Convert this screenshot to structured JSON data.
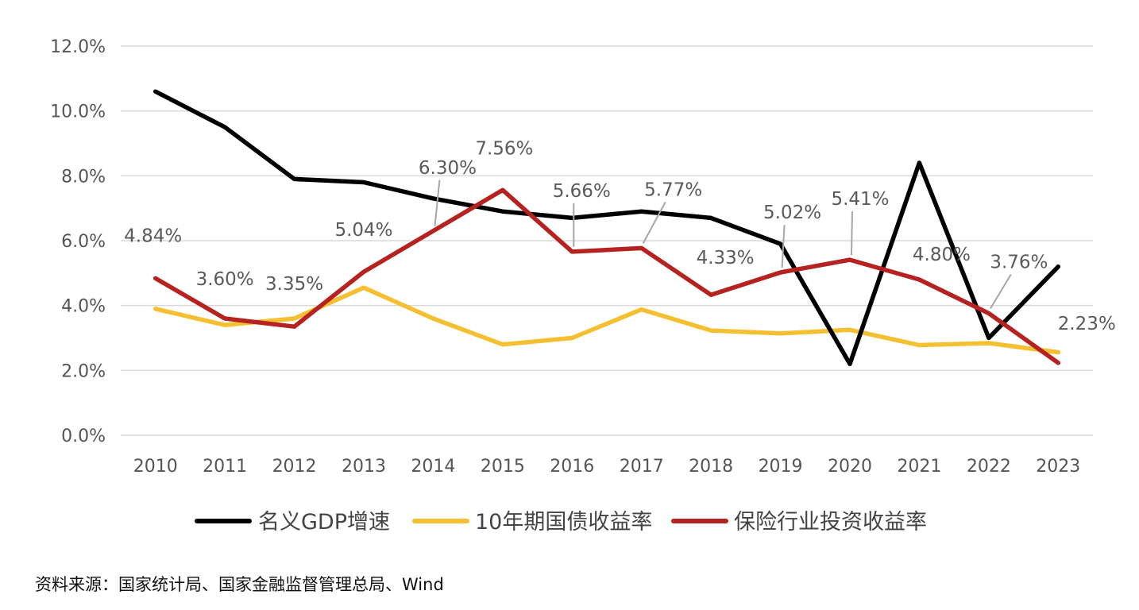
{
  "chart_data": {
    "type": "line",
    "categories": [
      "2010",
      "2011",
      "2012",
      "2013",
      "2014",
      "2015",
      "2016",
      "2017",
      "2018",
      "2019",
      "2020",
      "2021",
      "2022",
      "2023"
    ],
    "ylim": [
      0,
      12
    ],
    "y_ticks": [
      "0.0%",
      "2.0%",
      "4.0%",
      "6.0%",
      "8.0%",
      "10.0%",
      "12.0%"
    ],
    "grid": "horizontal",
    "legend_position": "bottom",
    "series": [
      {
        "name": "名义GDP增速",
        "color": "#000000",
        "values": [
          10.6,
          9.5,
          7.9,
          7.8,
          7.3,
          6.9,
          6.7,
          6.9,
          6.7,
          5.9,
          2.2,
          8.4,
          3.0,
          5.2
        ]
      },
      {
        "name": "10年期国债收益率",
        "color": "#F4C032",
        "values": [
          3.9,
          3.4,
          3.6,
          4.55,
          3.6,
          2.8,
          3.0,
          3.88,
          3.23,
          3.14,
          3.25,
          2.78,
          2.84,
          2.56
        ]
      },
      {
        "name": "保险行业投资收益率",
        "color": "#B5221F",
        "values": [
          4.84,
          3.6,
          3.35,
          5.04,
          6.3,
          7.56,
          5.66,
          5.77,
          4.33,
          5.02,
          5.41,
          4.8,
          3.76,
          2.23
        ],
        "labels": [
          "4.84%",
          "3.60%",
          "3.35%",
          "5.04%",
          "6.30%",
          "7.56%",
          "5.66%",
          "5.77%",
          "4.33%",
          "5.02%",
          "5.41%",
          "4.80%",
          "3.76%",
          "2.23%"
        ]
      }
    ]
  },
  "source_text": "资料来源：国家统计局、国家金融监督管理总局、Wind"
}
